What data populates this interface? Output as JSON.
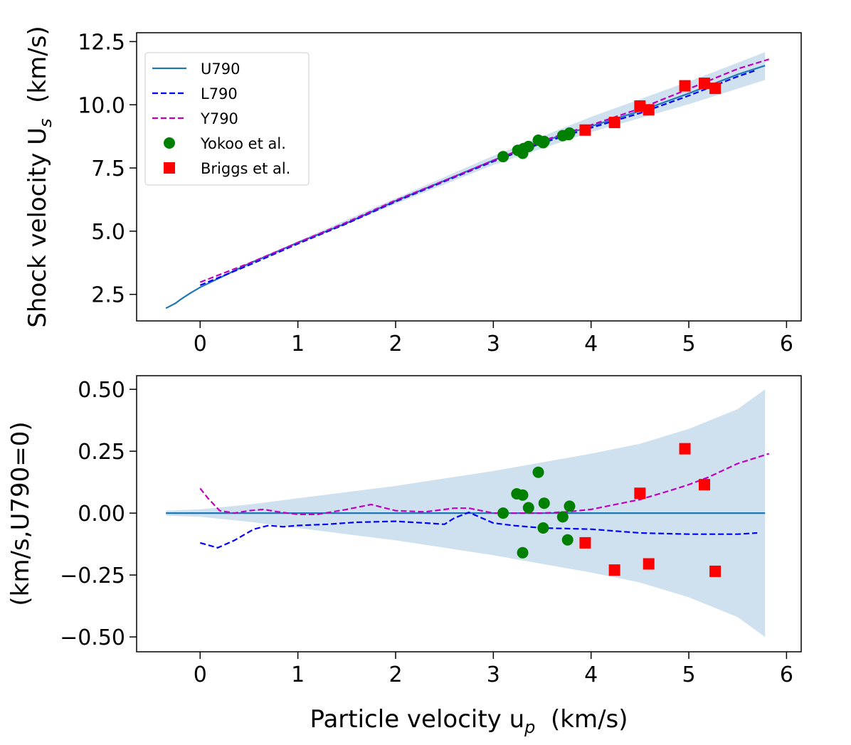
{
  "chart_data": [
    {
      "type": "line",
      "ylabel_main": "Shock velocity U",
      "ylabel_sub": "s",
      "ylabel_unit": "(km/s)",
      "xlim": [
        -0.65,
        6.15
      ],
      "ylim": [
        1.45,
        12.85
      ],
      "xticks": [
        0,
        1,
        2,
        3,
        4,
        5,
        6
      ],
      "xtick_labels": [
        "0",
        "1",
        "2",
        "3",
        "4",
        "5",
        "6"
      ],
      "yticks": [
        2.5,
        5.0,
        7.5,
        10.0,
        12.5
      ],
      "ytick_labels": [
        "2.5",
        "5.0",
        "7.5",
        "10.0",
        "12.5"
      ],
      "grid": false,
      "legend_position": "top-left",
      "band": {
        "x": [
          -0.35,
          0,
          1,
          2,
          3,
          4,
          5,
          5.78
        ],
        "y_low": [
          1.95,
          2.78,
          4.48,
          6.08,
          7.62,
          8.92,
          10.02,
          10.98
        ],
        "y_high": [
          1.97,
          2.8,
          4.6,
          6.3,
          7.98,
          9.52,
          10.92,
          12.08
        ]
      },
      "series": [
        {
          "name": "U790",
          "kind": "line",
          "style": "solid",
          "color": "#1f77b4",
          "x": [
            -0.35,
            -0.25,
            -0.2,
            -0.1,
            0,
            0.5,
            1,
            1.5,
            2,
            2.5,
            3,
            3.5,
            4,
            4.5,
            5,
            5.5,
            5.78
          ],
          "y": [
            1.95,
            2.15,
            2.3,
            2.55,
            2.78,
            3.72,
            4.55,
            5.32,
            6.2,
            7.0,
            7.8,
            8.55,
            9.15,
            9.75,
            10.45,
            11.2,
            11.55
          ]
        },
        {
          "name": "L790",
          "kind": "line",
          "style": "dashed",
          "color": "#0000ff",
          "x": [
            0,
            0.5,
            1,
            1.5,
            2,
            2.5,
            3,
            3.5,
            4,
            4.5,
            5,
            5.5,
            5.7
          ],
          "y": [
            2.86,
            3.66,
            4.5,
            5.3,
            6.17,
            6.97,
            7.76,
            8.49,
            9.09,
            9.67,
            10.36,
            11.12,
            11.38
          ]
        },
        {
          "name": "Y790",
          "kind": "line",
          "style": "dashed",
          "color": "#bf00bf",
          "x": [
            0,
            0.5,
            1,
            1.5,
            2,
            2.5,
            3,
            3.5,
            4,
            4.5,
            5,
            5.5,
            5.82
          ],
          "y": [
            2.98,
            3.73,
            4.55,
            5.35,
            6.22,
            7.0,
            7.8,
            8.57,
            9.2,
            9.85,
            10.63,
            11.42,
            11.8
          ]
        },
        {
          "name": "Yokoo et al.",
          "kind": "scatter",
          "marker": "circle",
          "color": "#008000",
          "x": [
            3.1,
            3.25,
            3.3,
            3.31,
            3.36,
            3.46,
            3.51,
            3.52,
            3.71,
            3.77,
            3.78
          ],
          "y": [
            7.95,
            8.2,
            8.08,
            8.27,
            8.35,
            8.6,
            8.5,
            8.55,
            8.78,
            8.82,
            8.88
          ]
        },
        {
          "name": "Briggs et al.",
          "kind": "scatter",
          "marker": "square",
          "color": "#ff0000",
          "x": [
            3.94,
            4.24,
            4.5,
            4.59,
            4.96,
            5.16,
            5.27
          ],
          "y": [
            9.0,
            9.3,
            9.95,
            9.8,
            10.75,
            10.85,
            10.65
          ]
        }
      ]
    },
    {
      "type": "line",
      "ylabel": "(km/s,U790=0)",
      "xlabel_main": "Particle velocity u",
      "xlabel_sub": "p",
      "xlabel_unit": "(km/s)",
      "xlim": [
        -0.65,
        6.15
      ],
      "ylim": [
        -0.56,
        0.555
      ],
      "xticks": [
        0,
        1,
        2,
        3,
        4,
        5,
        6
      ],
      "xtick_labels": [
        "0",
        "1",
        "2",
        "3",
        "4",
        "5",
        "6"
      ],
      "yticks": [
        0.5,
        0.25,
        0.0,
        -0.25,
        -0.5
      ],
      "ytick_labels": [
        "0.50",
        "0.25",
        "0.00",
        "−0.25",
        "−0.50"
      ],
      "grid": false,
      "band": {
        "x": [
          -0.35,
          0,
          0.5,
          1,
          1.5,
          2,
          2.5,
          3,
          3.5,
          4,
          4.5,
          5,
          5.5,
          5.78
        ],
        "y_low": [
          -0.01,
          -0.015,
          -0.035,
          -0.06,
          -0.085,
          -0.11,
          -0.14,
          -0.17,
          -0.205,
          -0.24,
          -0.28,
          -0.34,
          -0.42,
          -0.5
        ],
        "y_high": [
          0.01,
          0.015,
          0.035,
          0.06,
          0.085,
          0.11,
          0.14,
          0.17,
          0.205,
          0.24,
          0.28,
          0.34,
          0.42,
          0.5
        ]
      },
      "series": [
        {
          "name": "U790",
          "kind": "line",
          "style": "solid",
          "color": "#1f77b4",
          "x": [
            -0.35,
            5.78
          ],
          "y": [
            0.0,
            0.0
          ]
        },
        {
          "name": "L790",
          "kind": "line",
          "style": "dashed",
          "color": "#0000ff",
          "x": [
            0,
            0.18,
            0.35,
            0.55,
            0.7,
            0.85,
            1.0,
            1.3,
            1.6,
            1.8,
            2.0,
            2.3,
            2.5,
            2.6,
            2.75,
            3.0,
            3.2,
            3.5,
            4.0,
            4.5,
            5.0,
            5.5,
            5.7
          ],
          "y": [
            -0.12,
            -0.14,
            -0.11,
            -0.065,
            -0.05,
            -0.055,
            -0.05,
            -0.045,
            -0.037,
            -0.035,
            -0.033,
            -0.04,
            -0.045,
            -0.02,
            0.003,
            -0.04,
            -0.05,
            -0.06,
            -0.065,
            -0.08,
            -0.085,
            -0.085,
            -0.08
          ]
        },
        {
          "name": "Y790",
          "kind": "line",
          "style": "dashed",
          "color": "#bf00bf",
          "x": [
            0,
            0.08,
            0.2,
            0.35,
            0.5,
            0.65,
            0.8,
            1.0,
            1.2,
            1.5,
            1.75,
            2.0,
            2.3,
            2.6,
            2.75,
            3.0,
            3.5,
            3.75,
            4.0,
            4.5,
            4.8,
            5.0,
            5.2,
            5.5,
            5.82
          ],
          "y": [
            0.1,
            0.06,
            0.01,
            0.0,
            0.01,
            0.015,
            0.005,
            -0.005,
            -0.005,
            0.015,
            0.035,
            0.01,
            0.005,
            0.02,
            0.02,
            0.0,
            0.0,
            0.005,
            0.015,
            0.055,
            0.09,
            0.115,
            0.145,
            0.2,
            0.24
          ]
        },
        {
          "name": "Yokoo et al.",
          "kind": "scatter",
          "marker": "circle",
          "color": "#008000",
          "x": [
            3.1,
            3.24,
            3.3,
            3.3,
            3.36,
            3.46,
            3.51,
            3.52,
            3.71,
            3.76,
            3.78
          ],
          "y": [
            0.0,
            0.078,
            0.073,
            -0.16,
            0.022,
            0.165,
            -0.06,
            0.04,
            -0.015,
            -0.108,
            0.028
          ]
        },
        {
          "name": "Briggs et al.",
          "kind": "scatter",
          "marker": "square",
          "color": "#ff0000",
          "x": [
            3.94,
            4.24,
            4.5,
            4.59,
            4.96,
            5.16,
            5.27
          ],
          "y": [
            -0.12,
            -0.23,
            0.08,
            -0.205,
            0.26,
            0.115,
            -0.235
          ]
        }
      ]
    }
  ]
}
